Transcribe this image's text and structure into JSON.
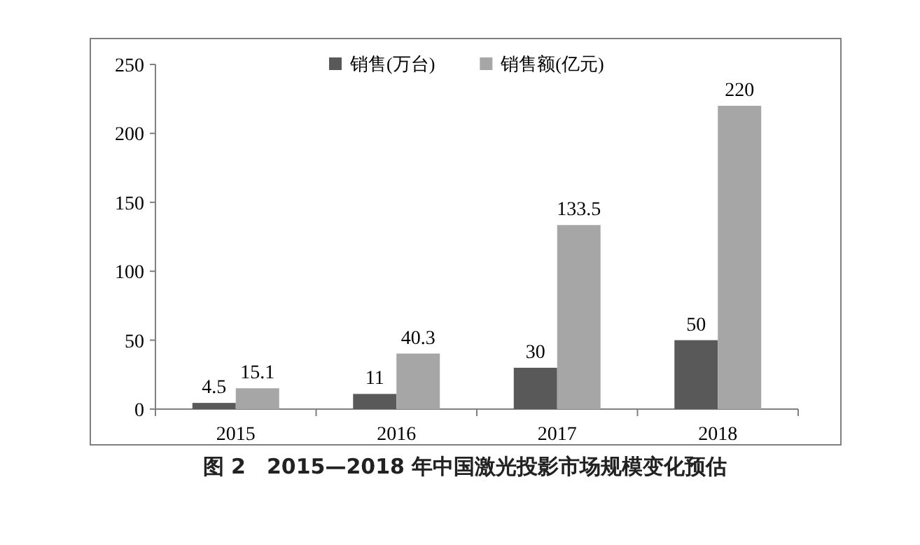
{
  "chart_data": {
    "type": "bar",
    "title": "图 2　2015—2018 年中国激光投影市场规模变化预估",
    "categories": [
      "2015",
      "2016",
      "2017",
      "2018"
    ],
    "series": [
      {
        "name": "销售(万台)",
        "color": "#595959",
        "values": [
          4.5,
          11,
          30,
          50
        ]
      },
      {
        "name": "销售额(亿元)",
        "color": "#a6a6a6",
        "values": [
          15.1,
          40.3,
          133.5,
          220
        ]
      }
    ],
    "ylim": [
      0,
      250
    ],
    "yticks": [
      0,
      50,
      100,
      150,
      200,
      250
    ],
    "data_labels": true,
    "legend": "top",
    "grid": false
  }
}
